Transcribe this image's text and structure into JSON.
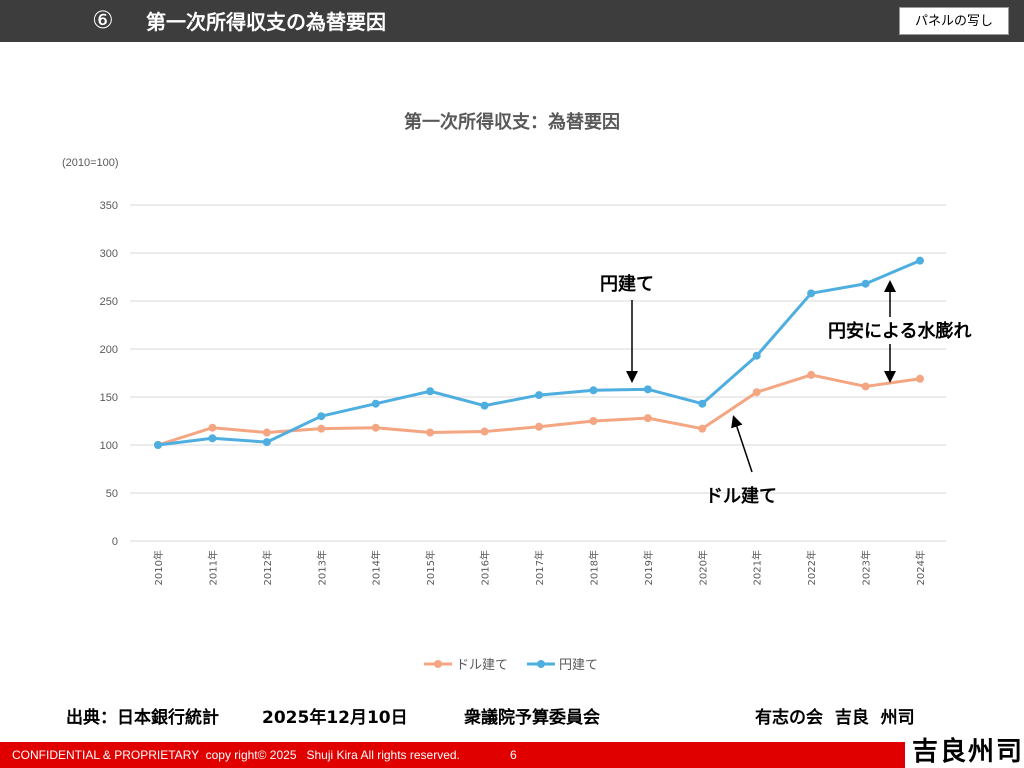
{
  "header": {
    "slide_number": "⑥",
    "title": "第一次所得収支の為替要因",
    "panel_label": "パネルの写し"
  },
  "chart_data": {
    "type": "line",
    "title": "第一次所得収支：為替要因",
    "ylabel": "(2010=100)",
    "xlabel": "",
    "ylim": [
      0,
      350
    ],
    "yticks": [
      0,
      50,
      100,
      150,
      200,
      250,
      300,
      350
    ],
    "grid": true,
    "legend_position": "bottom",
    "categories": [
      "2010年",
      "2011年",
      "2012年",
      "2013年",
      "2014年",
      "2015年",
      "2016年",
      "2017年",
      "2018年",
      "2019年",
      "2020年",
      "2021年",
      "2022年",
      "2023年",
      "2024年"
    ],
    "series": [
      {
        "name": "ドル建て",
        "color": "#f4a582",
        "values": [
          100,
          118,
          113,
          117,
          118,
          113,
          114,
          119,
          125,
          128,
          117,
          155,
          173,
          161,
          169
        ]
      },
      {
        "name": "円建て",
        "color": "#4eaee0",
        "values": [
          100,
          107,
          103,
          130,
          143,
          156,
          141,
          152,
          157,
          158,
          143,
          193,
          258,
          268,
          292
        ]
      }
    ],
    "annotations": [
      {
        "text": "円建て"
      },
      {
        "text": "円安による水膨れ"
      },
      {
        "text": "ドル建て"
      }
    ]
  },
  "footer": {
    "source": "出典：日本銀行統計",
    "date": "2025年12月10日",
    "committee": "衆議院予算委員会",
    "author": "有志の会  吉良  州司",
    "confidential": "CONFIDENTIAL & PROPRIETARY  copy right© 2025   Shuji Kira All rights reserved.",
    "page": "6",
    "signature": "吉良州司"
  }
}
